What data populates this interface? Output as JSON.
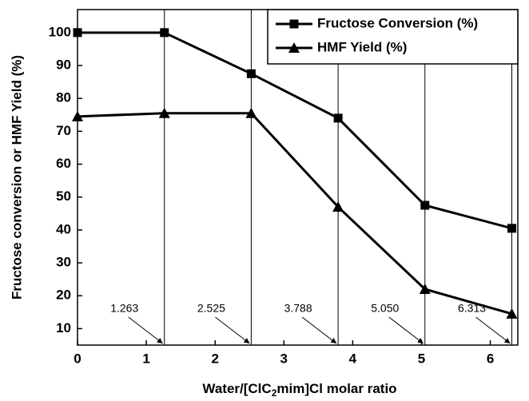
{
  "chart_data": {
    "type": "line",
    "xlabel": [
      "Water/[ClC",
      "2",
      "mim]Cl molar ratio"
    ],
    "ylabel": "Fructose conversion or HMF Yield (%)",
    "x": [
      0,
      1.263,
      2.525,
      3.788,
      5.05,
      6.313
    ],
    "series": [
      {
        "name": "Fructose Conversion (%)",
        "color": "#000000",
        "marker": "square",
        "values": [
          100,
          100,
          87.5,
          74,
          47.5,
          40.5
        ]
      },
      {
        "name": "HMF Yield (%)",
        "color": "#000000",
        "marker": "triangle",
        "values": [
          74.5,
          75.5,
          75.5,
          47,
          22,
          14.5
        ]
      }
    ],
    "annotations": [
      {
        "value": 1.263,
        "label": "1.263"
      },
      {
        "value": 2.525,
        "label": "2.525"
      },
      {
        "value": 3.788,
        "label": "3.788"
      },
      {
        "value": 5.05,
        "label": "5.050"
      },
      {
        "value": 6.313,
        "label": "6.313"
      }
    ],
    "xlim": [
      0,
      6.4
    ],
    "xticks": [
      0,
      1,
      2,
      3,
      4,
      5,
      6
    ],
    "ylim": [
      5,
      107
    ],
    "yticks": [
      10,
      20,
      30,
      40,
      50,
      60,
      70,
      80,
      90,
      100
    ],
    "grid": false,
    "legend": "upper right"
  }
}
